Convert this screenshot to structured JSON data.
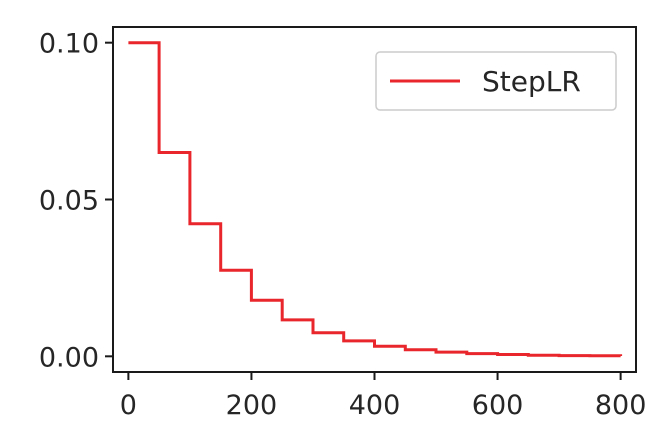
{
  "chart_data": {
    "type": "line",
    "title": "",
    "xlabel": "",
    "ylabel": "",
    "xlim": [
      -25,
      825
    ],
    "ylim": [
      -0.005,
      0.105
    ],
    "x_ticks": [
      0,
      200,
      400,
      600,
      800
    ],
    "x_tick_labels": [
      "0",
      "200",
      "400",
      "600",
      "800"
    ],
    "y_ticks": [
      0.0,
      0.05,
      0.1
    ],
    "y_tick_labels": [
      "0.00",
      "0.05",
      "0.10"
    ],
    "grid": false,
    "legend": {
      "position": "upper-right"
    },
    "series": [
      {
        "name": "StepLR",
        "color": "#e8262b",
        "step": true,
        "x": [
          0,
          50,
          100,
          150,
          200,
          250,
          300,
          350,
          400,
          450,
          500,
          550,
          600,
          650,
          700,
          750,
          800
        ],
        "y": [
          0.1,
          0.065,
          0.04225,
          0.02746,
          0.01785,
          0.0116,
          0.00754,
          0.0049,
          0.00319,
          0.00207,
          0.00135,
          0.00088,
          0.00057,
          0.00037,
          0.00024,
          0.00016,
          0.0001
        ]
      }
    ]
  }
}
